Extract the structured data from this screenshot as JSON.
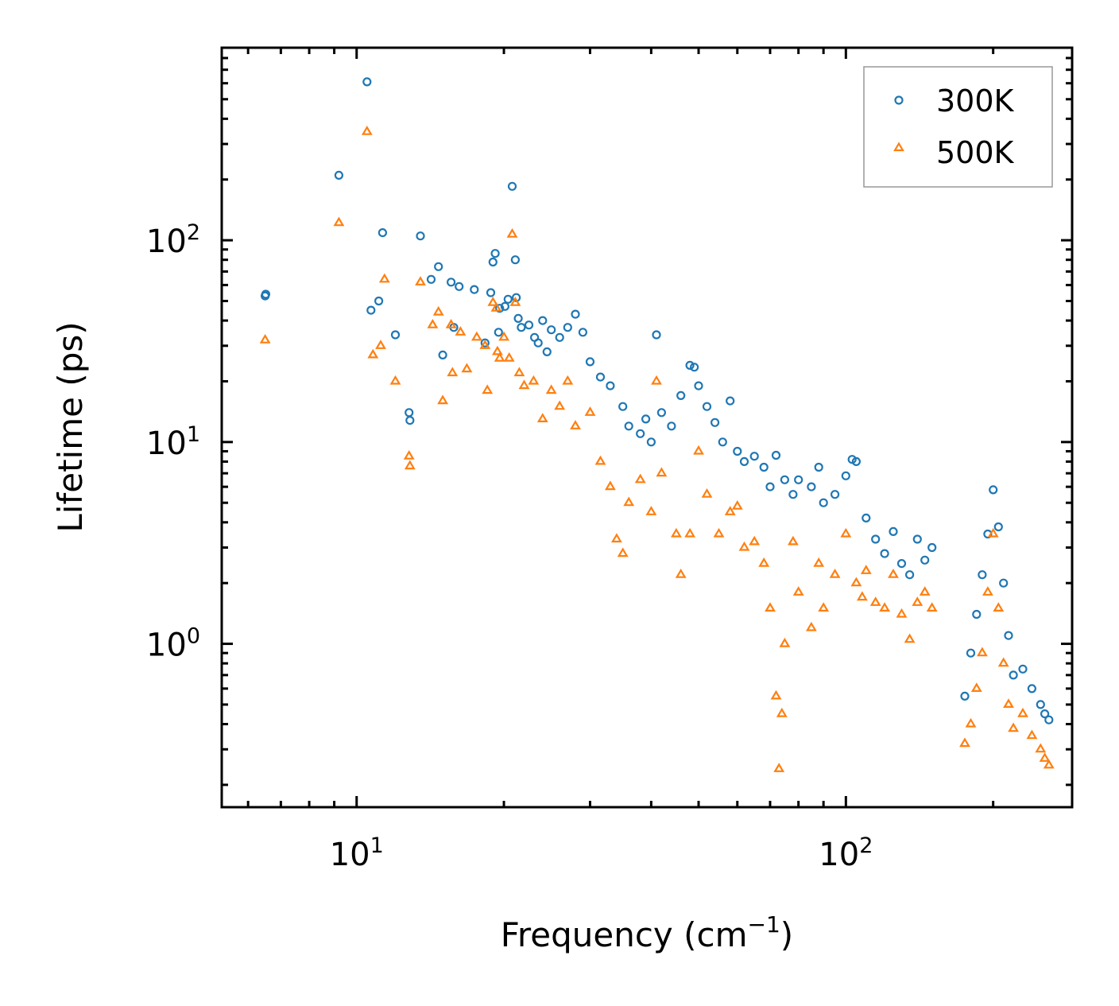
{
  "chart_data": {
    "type": "scatter",
    "title": "",
    "xlabel": "Frequency (cm",
    "xlabel_sup": "−1",
    "xlabel_end": ")",
    "ylabel": "Lifetime (ps)",
    "xscale": "log",
    "yscale": "log",
    "xlim": [
      5.3,
      290
    ],
    "ylim": [
      0.155,
      900
    ],
    "x_ticks": [
      {
        "value": 10,
        "base": "10",
        "exp": "1"
      },
      {
        "value": 100,
        "base": "10",
        "exp": "2"
      }
    ],
    "y_ticks": [
      {
        "value": 1,
        "base": "10",
        "exp": "0"
      },
      {
        "value": 10,
        "base": "10",
        "exp": "1"
      },
      {
        "value": 100,
        "base": "10",
        "exp": "2"
      }
    ],
    "legend_position": "top-right",
    "series": [
      {
        "name": "300K",
        "color": "#1f77b4",
        "marker": "circle",
        "points": [
          [
            6.5,
            53
          ],
          [
            6.52,
            54
          ],
          [
            9.2,
            210
          ],
          [
            10.5,
            610
          ],
          [
            10.7,
            45
          ],
          [
            11.1,
            50
          ],
          [
            11.3,
            109
          ],
          [
            12,
            34
          ],
          [
            12.8,
            14
          ],
          [
            12.85,
            12.8
          ],
          [
            13.5,
            105
          ],
          [
            14.2,
            64
          ],
          [
            14.7,
            74
          ],
          [
            15,
            27
          ],
          [
            15.6,
            62
          ],
          [
            15.8,
            37
          ],
          [
            16.2,
            59
          ],
          [
            17.4,
            57
          ],
          [
            18.3,
            31
          ],
          [
            18.8,
            55
          ],
          [
            19,
            78
          ],
          [
            19.2,
            86
          ],
          [
            19.5,
            35
          ],
          [
            19.6,
            46
          ],
          [
            20.1,
            47
          ],
          [
            20.4,
            51
          ],
          [
            20.8,
            185
          ],
          [
            21.1,
            80
          ],
          [
            21.2,
            52
          ],
          [
            21.4,
            41
          ],
          [
            21.7,
            37
          ],
          [
            22.5,
            38
          ],
          [
            23.1,
            33
          ],
          [
            23.5,
            31
          ],
          [
            24,
            40
          ],
          [
            24.5,
            28
          ],
          [
            25,
            36
          ],
          [
            26,
            33
          ],
          [
            27,
            37
          ],
          [
            28,
            43
          ],
          [
            29,
            35
          ],
          [
            30,
            25
          ],
          [
            31.5,
            21
          ],
          [
            33,
            19
          ],
          [
            35,
            15
          ],
          [
            36,
            12
          ],
          [
            38,
            11
          ],
          [
            39,
            13
          ],
          [
            40,
            10
          ],
          [
            41,
            34
          ],
          [
            42,
            14
          ],
          [
            44,
            12
          ],
          [
            46,
            17
          ],
          [
            48,
            24
          ],
          [
            49,
            23.5
          ],
          [
            50,
            19
          ],
          [
            52,
            15
          ],
          [
            54,
            12.5
          ],
          [
            56,
            10
          ],
          [
            58,
            16
          ],
          [
            60,
            9
          ],
          [
            62,
            8
          ],
          [
            65,
            8.5
          ],
          [
            68,
            7.5
          ],
          [
            70,
            6
          ],
          [
            72,
            8.6
          ],
          [
            75,
            6.5
          ],
          [
            78,
            5.5
          ],
          [
            80,
            6.5
          ],
          [
            85,
            6
          ],
          [
            88,
            7.5
          ],
          [
            90,
            5
          ],
          [
            95,
            5.5
          ],
          [
            100,
            6.8
          ],
          [
            103,
            8.2
          ],
          [
            105,
            8
          ],
          [
            110,
            4.2
          ],
          [
            115,
            3.3
          ],
          [
            120,
            2.8
          ],
          [
            125,
            3.6
          ],
          [
            130,
            2.5
          ],
          [
            135,
            2.2
          ],
          [
            140,
            3.3
          ],
          [
            145,
            2.6
          ],
          [
            150,
            3
          ],
          [
            175,
            0.55
          ],
          [
            180,
            0.9
          ],
          [
            185,
            1.4
          ],
          [
            190,
            2.2
          ],
          [
            195,
            3.5
          ],
          [
            200,
            5.8
          ],
          [
            205,
            3.8
          ],
          [
            210,
            2
          ],
          [
            215,
            1.1
          ],
          [
            220,
            0.7
          ],
          [
            230,
            0.75
          ],
          [
            240,
            0.6
          ],
          [
            250,
            0.5
          ],
          [
            255,
            0.45
          ],
          [
            260,
            0.42
          ]
        ]
      },
      {
        "name": "500K",
        "color": "#ff7f0e",
        "marker": "triangle",
        "points": [
          [
            6.5,
            32
          ],
          [
            9.2,
            122
          ],
          [
            10.5,
            345
          ],
          [
            10.8,
            27
          ],
          [
            11.2,
            30
          ],
          [
            11.4,
            64
          ],
          [
            12,
            20
          ],
          [
            12.8,
            8.5
          ],
          [
            12.85,
            7.6
          ],
          [
            13.5,
            62
          ],
          [
            14.3,
            38
          ],
          [
            14.7,
            44
          ],
          [
            15,
            16
          ],
          [
            15.6,
            38
          ],
          [
            15.7,
            22
          ],
          [
            16.3,
            35
          ],
          [
            16.8,
            23
          ],
          [
            17.6,
            33
          ],
          [
            18.3,
            30
          ],
          [
            18.5,
            18
          ],
          [
            19,
            49
          ],
          [
            19.3,
            46
          ],
          [
            19.4,
            28
          ],
          [
            19.6,
            26
          ],
          [
            20,
            33
          ],
          [
            20.5,
            26
          ],
          [
            20.8,
            107
          ],
          [
            21.1,
            49
          ],
          [
            21.5,
            22
          ],
          [
            22,
            19
          ],
          [
            23,
            20
          ],
          [
            24,
            13
          ],
          [
            25,
            18
          ],
          [
            26,
            15
          ],
          [
            27,
            20
          ],
          [
            28,
            12
          ],
          [
            30,
            14
          ],
          [
            31.5,
            8
          ],
          [
            33,
            6
          ],
          [
            34,
            3.3
          ],
          [
            35,
            2.8
          ],
          [
            36,
            5
          ],
          [
            38,
            6.5
          ],
          [
            40,
            4.5
          ],
          [
            41,
            20
          ],
          [
            42,
            7
          ],
          [
            45,
            3.5
          ],
          [
            46,
            2.2
          ],
          [
            48,
            3.5
          ],
          [
            50,
            9
          ],
          [
            52,
            5.5
          ],
          [
            55,
            3.5
          ],
          [
            58,
            4.5
          ],
          [
            60,
            4.8
          ],
          [
            62,
            3
          ],
          [
            65,
            3.2
          ],
          [
            68,
            2.5
          ],
          [
            70,
            1.5
          ],
          [
            72,
            0.55
          ],
          [
            73,
            0.24
          ],
          [
            74,
            0.45
          ],
          [
            75,
            1
          ],
          [
            78,
            3.2
          ],
          [
            80,
            1.8
          ],
          [
            85,
            1.2
          ],
          [
            88,
            2.5
          ],
          [
            90,
            1.5
          ],
          [
            95,
            2.2
          ],
          [
            100,
            3.5
          ],
          [
            105,
            2
          ],
          [
            108,
            1.7
          ],
          [
            110,
            2.3
          ],
          [
            115,
            1.6
          ],
          [
            120,
            1.5
          ],
          [
            125,
            2.2
          ],
          [
            130,
            1.4
          ],
          [
            135,
            1.05
          ],
          [
            140,
            1.6
          ],
          [
            145,
            1.8
          ],
          [
            150,
            1.5
          ],
          [
            175,
            0.32
          ],
          [
            180,
            0.4
          ],
          [
            185,
            0.6
          ],
          [
            190,
            0.9
          ],
          [
            195,
            1.8
          ],
          [
            200,
            3.5
          ],
          [
            205,
            1.5
          ],
          [
            210,
            0.8
          ],
          [
            215,
            0.5
          ],
          [
            220,
            0.38
          ],
          [
            230,
            0.45
          ],
          [
            240,
            0.35
          ],
          [
            250,
            0.3
          ],
          [
            255,
            0.27
          ],
          [
            260,
            0.25
          ]
        ]
      }
    ]
  }
}
